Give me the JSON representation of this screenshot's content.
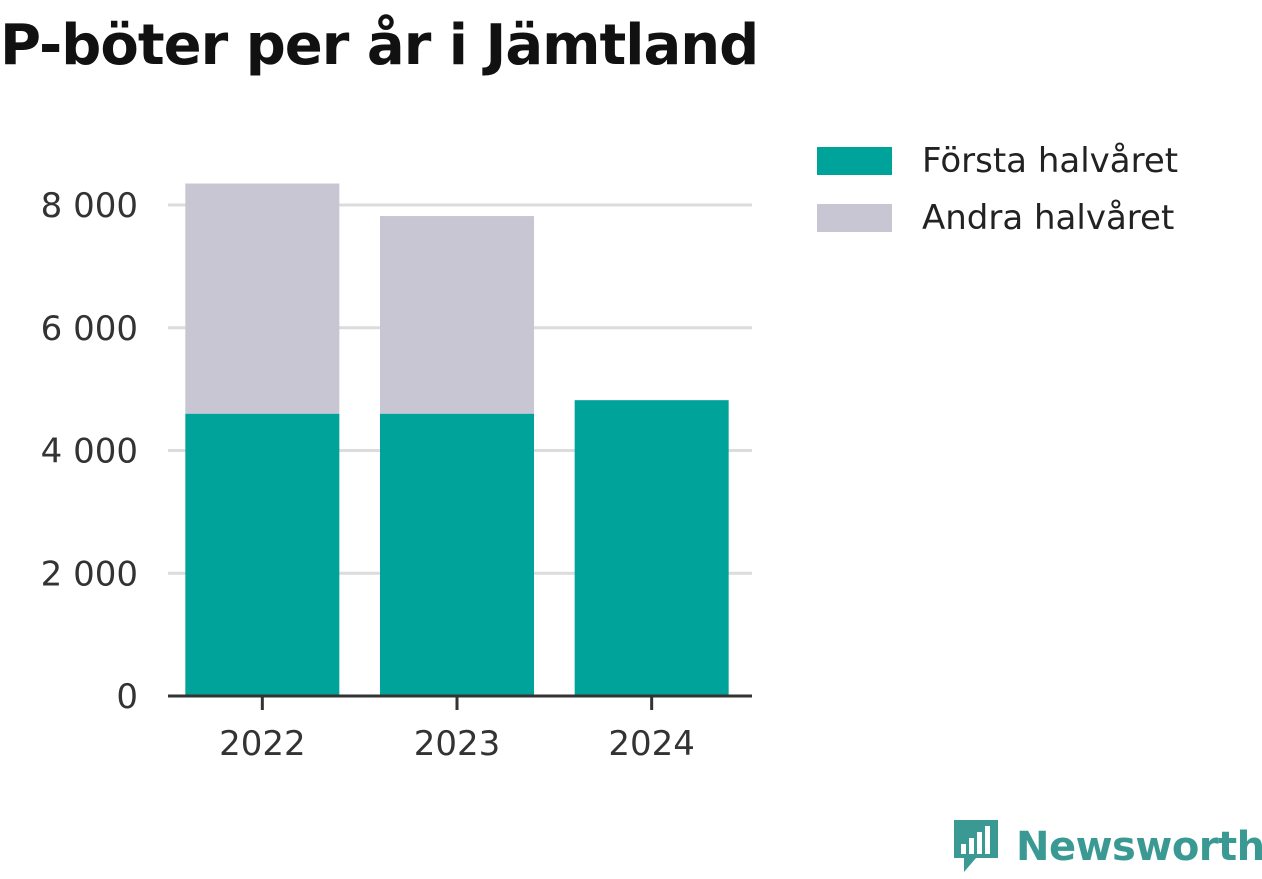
{
  "page": {
    "title": "P-böter per år i Jämtland",
    "brand": "Newsworthy"
  },
  "colors": {
    "first_half": "#00a39a",
    "second_half": "#c7c6d2",
    "grid": "#dcdcdc",
    "axis": "#333333",
    "tick_text": "#333333",
    "brand": "#3a9a93"
  },
  "chart_data": {
    "type": "bar",
    "stacked": true,
    "title": "P-böter per år i Jämtland",
    "xlabel": "",
    "ylabel": "",
    "categories": [
      "2022",
      "2023",
      "2024"
    ],
    "series": [
      {
        "name": "Första halvåret",
        "values": [
          4600,
          4600,
          4820
        ]
      },
      {
        "name": "Andra halvåret",
        "values": [
          3750,
          3220,
          0
        ]
      }
    ],
    "ylim": [
      0,
      8000
    ],
    "yticks": [
      0,
      2000,
      4000,
      6000,
      8000
    ],
    "ytick_labels": [
      "0",
      "2 000",
      "4 000",
      "6 000",
      "8 000"
    ],
    "grid": true,
    "legend_position": "right"
  }
}
